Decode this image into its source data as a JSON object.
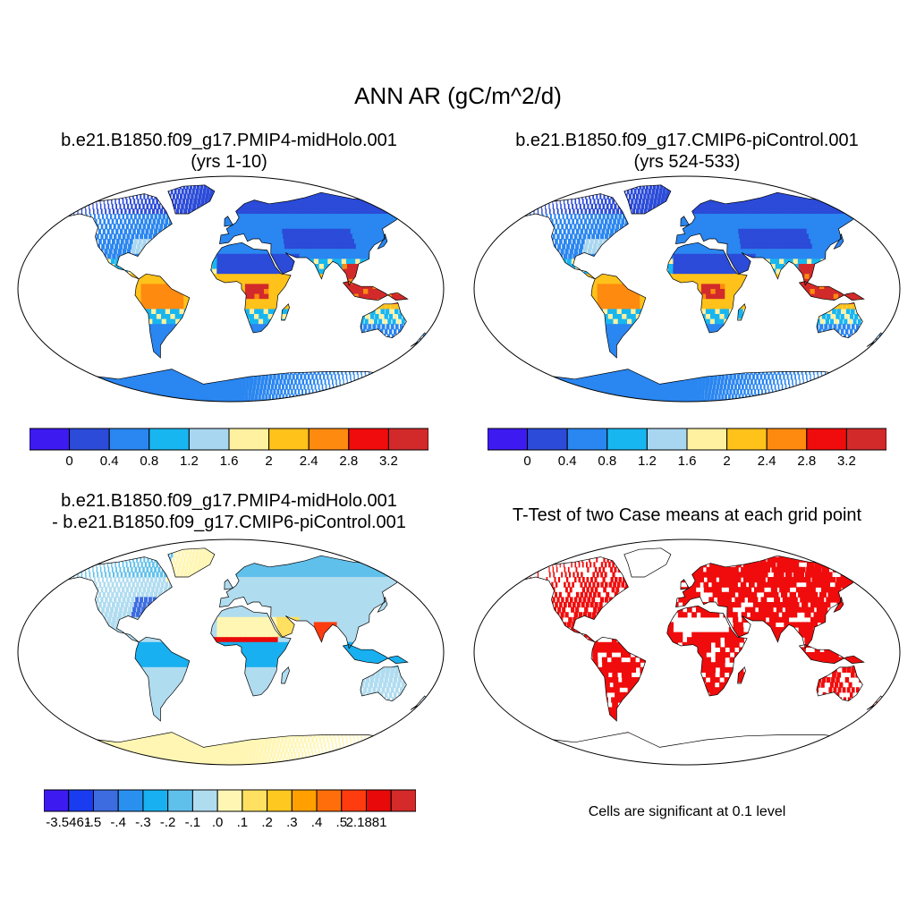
{
  "figure_title": "ANN AR (gC/m^2/d)",
  "panels": {
    "top_left": {
      "title_line1": "b.e21.B1850.f09_g17.PMIP4-midHolo.001",
      "title_line2": "(yrs 1-10)"
    },
    "top_right": {
      "title_line1": "b.e21.B1850.f09_g17.CMIP6-piControl.001",
      "title_line2": "(yrs 524-533)"
    },
    "bottom_left": {
      "title_line1": "b.e21.B1850.f09_g17.PMIP4-midHolo.001",
      "title_line2": "- b.e21.B1850.f09_g17.CMIP6-piControl.001"
    },
    "bottom_right": {
      "title_line1": "T-Test of two Case means at each grid point",
      "note": "Cells are significant at 0.1 level"
    }
  },
  "colorbar_abs": {
    "colors": [
      "#3c1af0",
      "#2b4bd8",
      "#2a86f0",
      "#18b6f0",
      "#a8d6f0",
      "#fff1a0",
      "#ffc21a",
      "#ff8a10",
      "#f00c0c",
      "#d22a2a"
    ],
    "labels": [
      "0",
      "0.4",
      "0.8",
      "1.2",
      "1.6",
      "2",
      "2.4",
      "2.8",
      "3.2"
    ]
  },
  "colorbar_diff": {
    "colors": [
      "#3c1af0",
      "#1a3cf0",
      "#3c6ce0",
      "#2a90f0",
      "#18b0f0",
      "#60c0ec",
      "#b0dcf0",
      "#fff6b4",
      "#ffe060",
      "#ffc820",
      "#ffa000",
      "#ff6e0a",
      "#ff3c10",
      "#e80a0a",
      "#d42a2a"
    ],
    "labels": [
      "-3.5461",
      "-.5",
      "-.4",
      "-.3",
      "-.2",
      "-.1",
      ".0",
      ".1",
      ".2",
      ".3",
      ".4",
      ".5",
      "2.1881"
    ]
  },
  "chart_data": [
    {
      "type": "heatmap",
      "title": "b.e21.B1850.f09_g17.PMIP4-midHolo.001 (yrs 1-10)",
      "variable": "ANN AR (gC/m^2/d)",
      "projection": "Robinson",
      "scale_levels": [
        0,
        0.4,
        0.8,
        1.2,
        1.6,
        2,
        2.4,
        2.8,
        3.2
      ]
    },
    {
      "type": "heatmap",
      "title": "b.e21.B1850.f09_g17.CMIP6-piControl.001 (yrs 524-533)",
      "variable": "ANN AR (gC/m^2/d)",
      "projection": "Robinson",
      "scale_levels": [
        0,
        0.4,
        0.8,
        1.2,
        1.6,
        2,
        2.4,
        2.8,
        3.2
      ]
    },
    {
      "type": "heatmap",
      "title": "b.e21.B1850.f09_g17.PMIP4-midHolo.001 - b.e21.B1850.f09_g17.CMIP6-piControl.001",
      "projection": "Robinson",
      "scale_levels": [
        -3.5461,
        -0.5,
        -0.4,
        -0.3,
        -0.2,
        -0.1,
        0.0,
        0.1,
        0.2,
        0.3,
        0.4,
        0.5,
        2.1881
      ]
    },
    {
      "type": "heatmap",
      "title": "T-Test of two Case means at each grid point",
      "significance_level": 0.1,
      "significant_color": "#f00c0c"
    }
  ]
}
